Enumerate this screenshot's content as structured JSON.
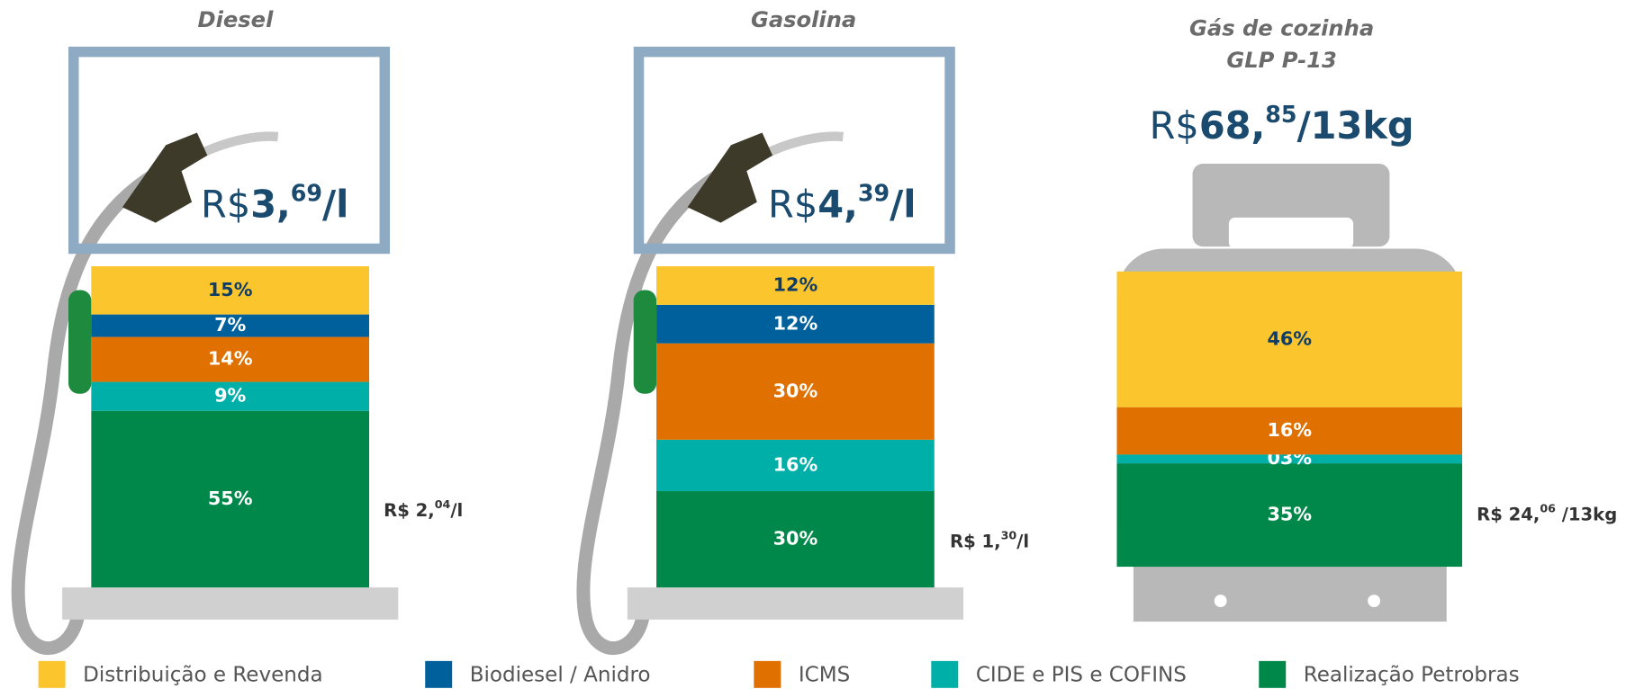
{
  "chart_data": [
    {
      "type": "bar",
      "title": "Diesel",
      "price": {
        "prefix": "R$",
        "integer": "3,",
        "cents": "69",
        "unit": "/l"
      },
      "annotation": {
        "prefix": "R$ 2,",
        "cents": "04",
        "unit": "/l"
      },
      "series": [
        {
          "name": "Distribuição e Revenda",
          "color": "#fbc52d",
          "values": [
            15
          ],
          "value_labels": [
            "15%"
          ]
        },
        {
          "name": "Biodiesel / Anidro",
          "color": "#00609c",
          "values": [
            7
          ],
          "value_labels": [
            "7%"
          ]
        },
        {
          "name": "ICMS",
          "color": "#e07000",
          "values": [
            14
          ],
          "value_labels": [
            "14%"
          ]
        },
        {
          "name": "CIDE e PIS e COFINS",
          "color": "#00b0a8",
          "values": [
            9
          ],
          "value_labels": [
            "9%"
          ]
        },
        {
          "name": "Realização Petrobras",
          "color": "#00884a",
          "values": [
            55
          ],
          "value_labels": [
            "55%"
          ]
        }
      ]
    },
    {
      "type": "bar",
      "title": "Gasolina",
      "price": {
        "prefix": "R$",
        "integer": "4,",
        "cents": "39",
        "unit": "/l"
      },
      "annotation": {
        "prefix": "R$ 1,",
        "cents": "30",
        "unit": "/l"
      },
      "series": [
        {
          "color": "#fbc52d",
          "values": [
            12
          ],
          "value_labels": [
            "12%"
          ]
        },
        {
          "color": "#00609c",
          "values": [
            12
          ],
          "value_labels": [
            "12%"
          ]
        },
        {
          "color": "#e07000",
          "values": [
            30
          ],
          "value_labels": [
            "30%"
          ]
        },
        {
          "color": "#00b0a8",
          "values": [
            16
          ],
          "value_labels": [
            "16%"
          ]
        },
        {
          "color": "#00884a",
          "values": [
            30
          ],
          "value_labels": [
            "30%"
          ]
        }
      ]
    },
    {
      "type": "bar",
      "title": "Gás de cozinha",
      "subtitle": "GLP P-13",
      "price": {
        "prefix": "R$",
        "integer": "68,",
        "cents": "85",
        "unit": "/13kg"
      },
      "annotation": {
        "prefix": "R$ 24,",
        "cents": "06",
        "unit": " /13kg"
      },
      "series": [
        {
          "color": "#fbc52d",
          "values": [
            46
          ],
          "value_labels": [
            "46%"
          ]
        },
        {
          "color": "#e07000",
          "values": [
            16
          ],
          "value_labels": [
            "16%"
          ]
        },
        {
          "color": "#00b0a8",
          "values": [
            3
          ],
          "value_labels": [
            "03%"
          ]
        },
        {
          "color": "#00884a",
          "values": [
            35
          ],
          "value_labels": [
            "35%"
          ]
        }
      ]
    }
  ]
}
